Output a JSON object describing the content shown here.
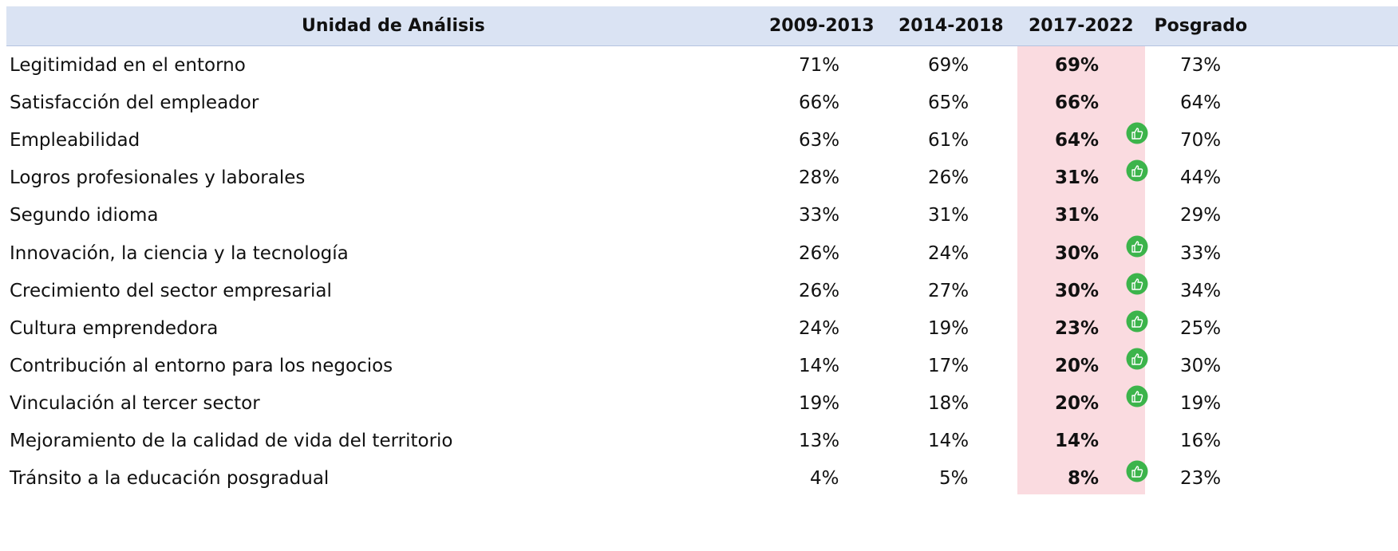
{
  "table": {
    "header": [
      "Unidad de Análisis",
      "2009-2013",
      "2014-2018",
      "2017-2022",
      "Posgrado"
    ],
    "rows": [
      [
        "Legitimidad en el entorno",
        "71%",
        "69%",
        "69%",
        "73%"
      ],
      [
        "Satisfacción del empleador",
        "66%",
        "65%",
        "66%",
        "64%"
      ],
      [
        "Empleabilidad",
        "63%",
        "61%",
        "64%",
        "70%"
      ],
      [
        "Logros profesionales y laborales",
        "28%",
        "26%",
        "31%",
        "44%"
      ],
      [
        "Segundo idioma",
        "33%",
        "31%",
        "31%",
        "29%"
      ],
      [
        "Innovación, la ciencia y la tecnología",
        "26%",
        "24%",
        "30%",
        "33%"
      ],
      [
        "Crecimiento del sector empresarial",
        "26%",
        "27%",
        "30%",
        "34%"
      ],
      [
        "Cultura emprendedora",
        "24%",
        "19%",
        "23%",
        "25%"
      ],
      [
        "Contribución al entorno para los negocios",
        "14%",
        "17%",
        "20%",
        "30%"
      ],
      [
        "Vinculación al tercer sector",
        "19%",
        "18%",
        "20%",
        "19%"
      ],
      [
        "Mejoramiento de la calidad de vida del territorio",
        "13%",
        "14%",
        "14%",
        "16%"
      ],
      [
        "Tránsito a la educación posgradual",
        "4%",
        "5%",
        "8%",
        "23%"
      ]
    ]
  }
}
